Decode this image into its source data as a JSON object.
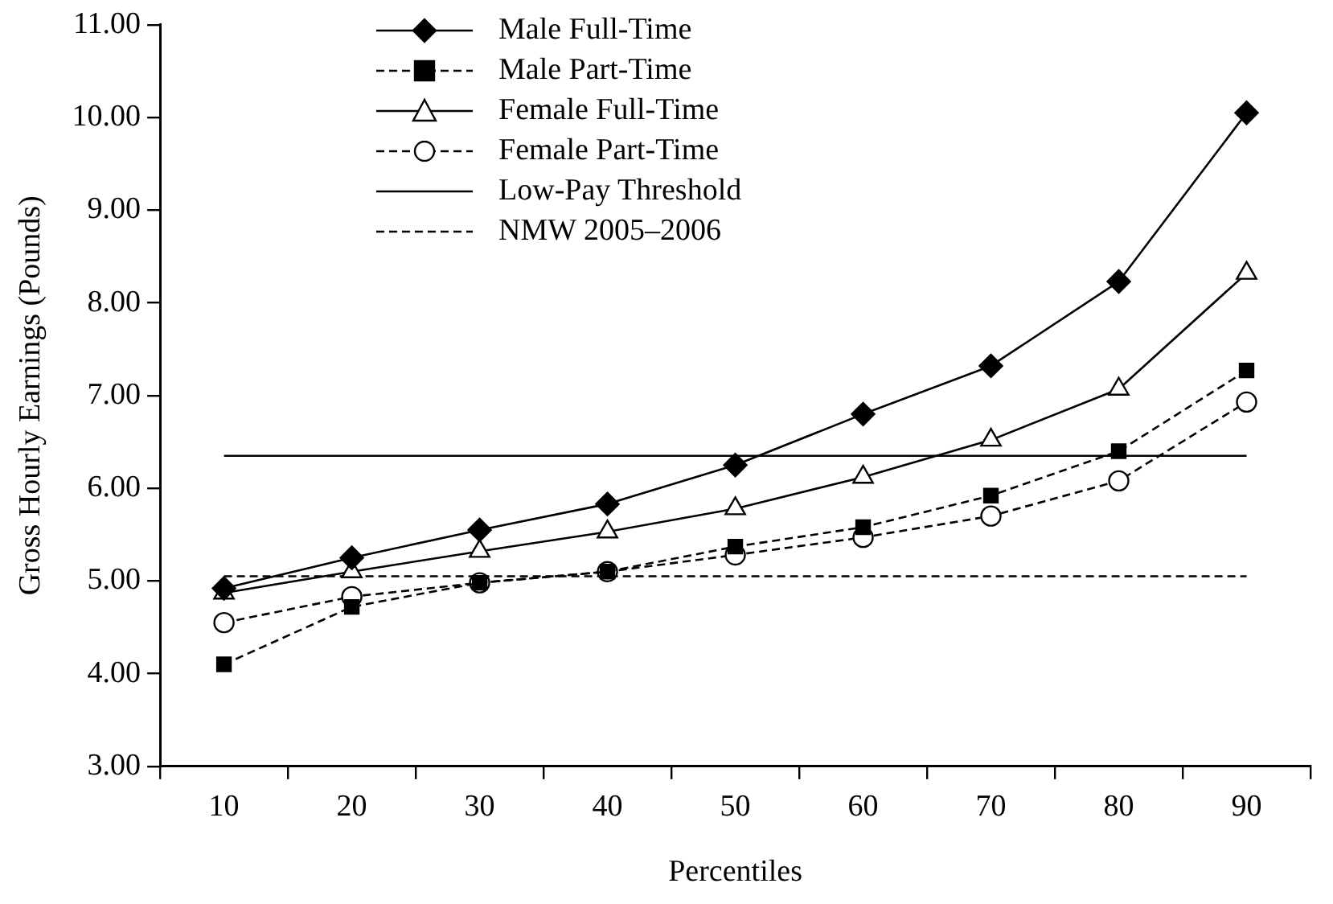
{
  "chart_data": {
    "type": "line",
    "xlabel": "Percentiles",
    "ylabel": "Gross Hourly Earnings (Pounds)",
    "categories": [
      "10",
      "20",
      "30",
      "40",
      "50",
      "60",
      "70",
      "80",
      "90"
    ],
    "ylim": [
      3,
      11
    ],
    "yticks": [
      {
        "value": 3,
        "label": "3.00"
      },
      {
        "value": 4,
        "label": "4.00"
      },
      {
        "value": 5,
        "label": "5.00"
      },
      {
        "value": 6,
        "label": "6.00"
      },
      {
        "value": 7,
        "label": "7.00"
      },
      {
        "value": 8,
        "label": "8.00"
      },
      {
        "value": 9,
        "label": "9.00"
      },
      {
        "value": 10,
        "label": "10.00"
      },
      {
        "value": 11,
        "label": "11.00"
      }
    ],
    "grid": false,
    "legend": "top left",
    "series": [
      {
        "name": "Male Full-Time",
        "color": "#000000",
        "marker": "diamond",
        "line_style": "solid",
        "values": [
          4.92,
          5.25,
          5.55,
          5.83,
          6.25,
          6.8,
          7.32,
          8.23,
          10.05
        ]
      },
      {
        "name": "Male Part-Time",
        "color": "#000000",
        "marker": "square",
        "line_style": "dashed",
        "values": [
          4.1,
          4.72,
          4.98,
          5.1,
          5.37,
          5.58,
          5.92,
          6.4,
          7.27
        ]
      },
      {
        "name": "Female Full-Time",
        "color": "#000000",
        "marker": "triangle",
        "line_style": "solid",
        "values": [
          4.87,
          5.1,
          5.32,
          5.53,
          5.78,
          6.12,
          6.52,
          7.07,
          8.32
        ]
      },
      {
        "name": "Female Part-Time",
        "color": "#000000",
        "marker": "circle",
        "line_style": "dashed",
        "values": [
          4.55,
          4.83,
          4.98,
          5.1,
          5.28,
          5.47,
          5.7,
          6.08,
          6.93
        ]
      },
      {
        "name": "Low-Pay Threshold",
        "color": "#000000",
        "marker": "none",
        "line_style": "solid",
        "values": [
          6.35,
          6.35,
          6.35,
          6.35,
          6.35,
          6.35,
          6.35,
          6.35,
          6.35
        ]
      },
      {
        "name": "NMW 2005–2006",
        "color": "#000000",
        "marker": "none",
        "line_style": "dashed",
        "values": [
          5.05,
          5.05,
          5.05,
          5.05,
          5.05,
          5.05,
          5.05,
          5.05,
          5.05
        ]
      }
    ]
  }
}
